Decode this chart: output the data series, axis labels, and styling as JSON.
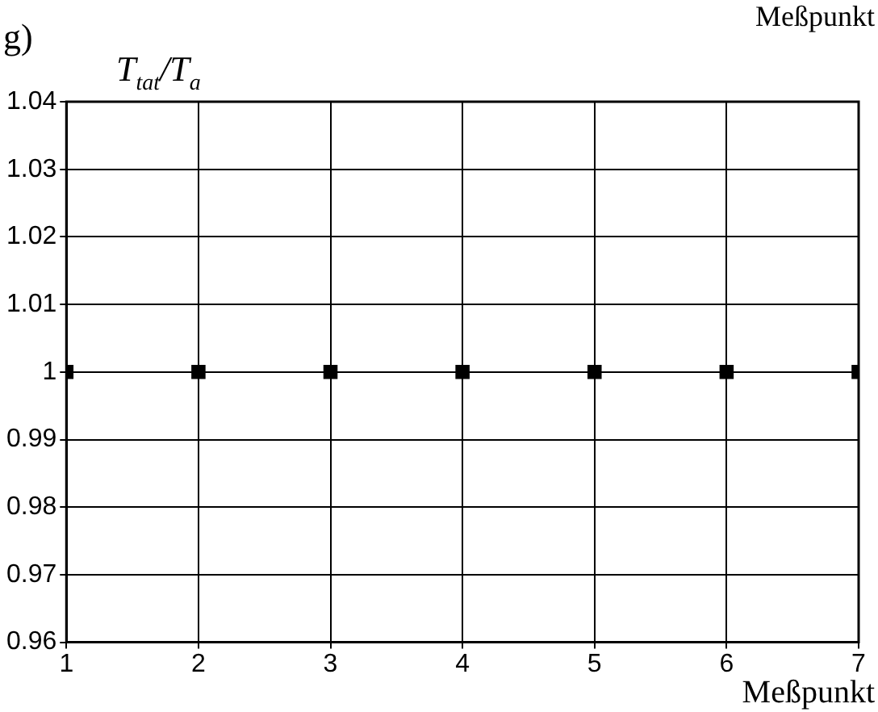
{
  "chart_data": {
    "type": "scatter",
    "title": "g)",
    "xlabel": "Meßpunkt",
    "ylabel": "T$_{tat}$/T$_{a}$",
    "annotations": [
      "Meßpunkt"
    ],
    "x": [
      1,
      2,
      3,
      4,
      5,
      6,
      7
    ],
    "series": [
      {
        "color": "#000000",
        "values": [
          1,
          1,
          1,
          1,
          1,
          1,
          1
        ]
      }
    ],
    "xlim": [
      1,
      7
    ],
    "xticks": [
      1,
      2,
      3,
      4,
      5,
      6,
      7
    ],
    "ylim": [
      0.96,
      1.04
    ],
    "yticks": [
      0.96,
      0.97,
      0.98,
      0.99,
      1,
      1.01,
      1.02,
      1.03,
      1.04
    ],
    "grid": true,
    "marker": "square",
    "legend": false
  }
}
